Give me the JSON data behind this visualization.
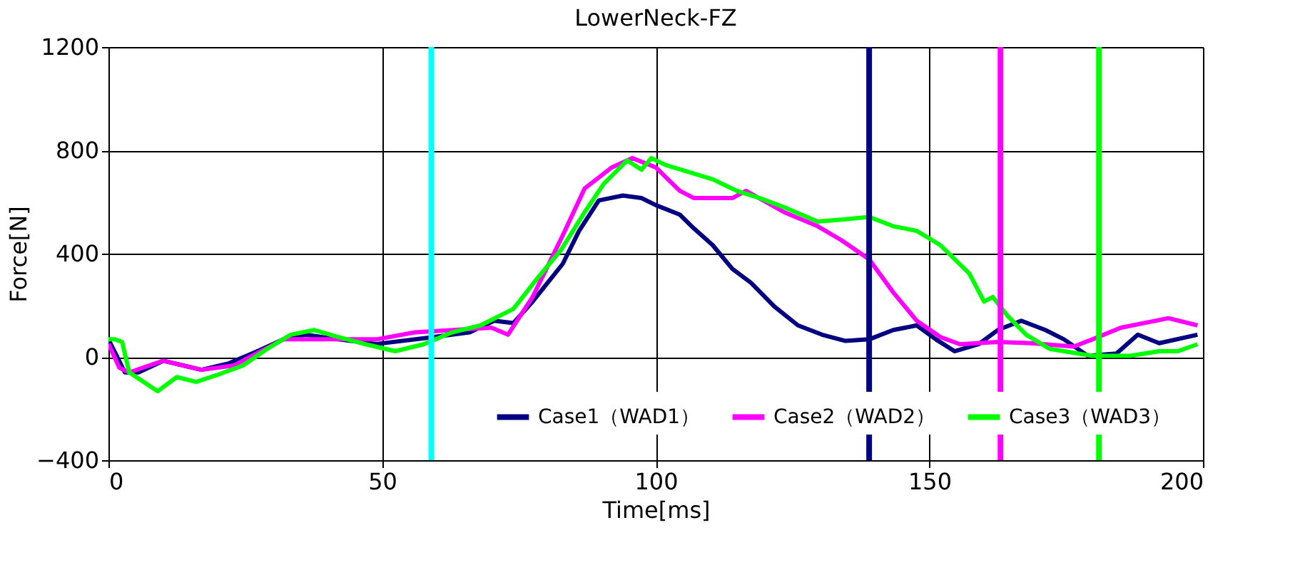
{
  "chart_data": {
    "type": "line",
    "title": "LowerNeck-FZ",
    "xlabel": "Time[ms]",
    "ylabel": "Force[N]",
    "xlim": [
      0,
      200
    ],
    "xticks": [
      0,
      50,
      100,
      150,
      200
    ],
    "ylim": [
      -400,
      1200
    ],
    "yticks": [
      -400,
      0,
      400,
      800,
      1200
    ],
    "grid": true,
    "legend": "bottom right",
    "marker": "none",
    "line_style": "solid",
    "series": [
      {
        "name": "Case1（WAD1）",
        "color": "#000080",
        "x": [
          0,
          3,
          5.5,
          10,
          17,
          22,
          27,
          32,
          36,
          42,
          49,
          58,
          66,
          70.5,
          74,
          77.5,
          83,
          86,
          89.6,
          94,
          97.4,
          100,
          104.4,
          107,
          110.4,
          114,
          117.4,
          121.7,
          126,
          130.4,
          134.7,
          139,
          143.4,
          147.7,
          151.2,
          154.6,
          159,
          162.5,
          166.8,
          171.2,
          174.6,
          179,
          184.2,
          188.1,
          192,
          199
        ],
        "values": [
          68,
          -60,
          -60,
          -15,
          -50,
          -25,
          20,
          68,
          86,
          68,
          50,
          73,
          95,
          140,
          131,
          214,
          360,
          488,
          606,
          625,
          615,
          588,
          551,
          497,
          433,
          341,
          287,
          195,
          122,
          86,
          62,
          68,
          104,
          122,
          68,
          22,
          49,
          104,
          140,
          104,
          68,
          4,
          13,
          86,
          53,
          86
        ]
      },
      {
        "name": "Case2（WAD2）",
        "color": "#ff00ff",
        "x": [
          0,
          2,
          3.8,
          10,
          17,
          23,
          27,
          32,
          40,
          49,
          56,
          63,
          70,
          73,
          77.5,
          83,
          87,
          92,
          95.7,
          100,
          104.4,
          107,
          114,
          116.5,
          123.5,
          129.6,
          134,
          139,
          143.4,
          147.7,
          152,
          155.6,
          162.5,
          168.6,
          176.4,
          179.8,
          185,
          193.7,
          199
        ],
        "values": [
          50,
          -42,
          -60,
          -15,
          -50,
          -33,
          13,
          68,
          68,
          68,
          95,
          104,
          113,
          86,
          232,
          470,
          652,
          734,
          770,
          734,
          643,
          615,
          615,
          643,
          560,
          506,
          451,
          378,
          250,
          140,
          77,
          49,
          58,
          53,
          40,
          68,
          113,
          150,
          122
        ]
      },
      {
        "name": "Case3（WAD3）",
        "color": "#00ff00",
        "x": [
          0,
          1.2,
          2.5,
          3.8,
          9,
          12.5,
          16,
          20,
          24.6,
          29,
          33.3,
          37.6,
          42,
          47,
          52.4,
          57.6,
          62.8,
          68,
          74,
          78.4,
          82.7,
          87,
          90.5,
          94.8,
          97.4,
          99.2,
          101.8,
          106,
          110.4,
          114.8,
          119,
          123.5,
          129.6,
          134.7,
          139,
          143.4,
          147.7,
          152,
          157.3,
          160,
          161.6,
          164.3,
          167.7,
          172,
          176.4,
          179.8,
          186.7,
          192,
          195.4,
          199
        ],
        "values": [
          68,
          68,
          58,
          -60,
          -133,
          -78,
          -97,
          -69,
          -33,
          31,
          86,
          104,
          77,
          49,
          22,
          49,
          95,
          122,
          186,
          305,
          414,
          560,
          670,
          761,
          725,
          770,
          743,
          716,
          688,
          643,
          615,
          579,
          524,
          533,
          542,
          506,
          488,
          433,
          323,
          214,
          232,
          159,
          86,
          31,
          16,
          4,
          4,
          22,
          22,
          49
        ]
      }
    ],
    "ref_lines": [
      {
        "axis": "x",
        "value": 59,
        "color": "#00ffff"
      },
      {
        "axis": "x",
        "value": 139,
        "color": "#000080"
      },
      {
        "axis": "x",
        "value": 163,
        "color": "#ff00ff"
      },
      {
        "axis": "x",
        "value": 181,
        "color": "#00ff00"
      }
    ]
  }
}
